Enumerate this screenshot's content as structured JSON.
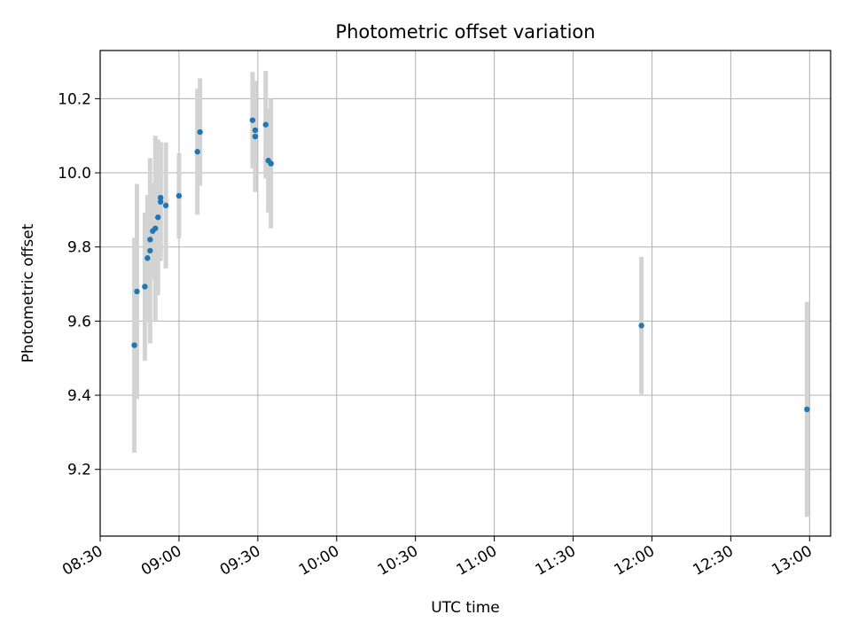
{
  "chart_data": {
    "type": "scatter",
    "title": "Photometric offset variation",
    "xlabel": "UTC time",
    "ylabel": "Photometric offset",
    "x_ticks": [
      "08:30",
      "09:00",
      "09:30",
      "10:00",
      "10:30",
      "11:00",
      "11:30",
      "12:00",
      "12:30",
      "13:00"
    ],
    "y_ticks": [
      "9.2",
      "9.4",
      "9.6",
      "9.8",
      "10.0",
      "10.2"
    ],
    "xlim": [
      "08:30",
      "13:08"
    ],
    "ylim": [
      9.02,
      10.33
    ],
    "grid": true,
    "colors": {
      "point": "#1f77b4",
      "errorbar": "#d3d3d3",
      "grid": "#b0b0b0"
    },
    "series": [
      {
        "points": [
          {
            "x": "08:43",
            "y": 9.535,
            "err": 0.29
          },
          {
            "x": "08:44",
            "y": 9.68,
            "err": 0.29
          },
          {
            "x": "08:47",
            "y": 9.693,
            "err": 0.2
          },
          {
            "x": "08:48",
            "y": 9.77,
            "err": 0.17
          },
          {
            "x": "08:49",
            "y": 9.82,
            "err": 0.12
          },
          {
            "x": "08:49",
            "y": 9.79,
            "err": 0.25
          },
          {
            "x": "08:50",
            "y": 9.843,
            "err": 0.13
          },
          {
            "x": "08:51",
            "y": 9.85,
            "err": 0.25
          },
          {
            "x": "08:52",
            "y": 9.88,
            "err": 0.21
          },
          {
            "x": "08:53",
            "y": 9.933,
            "err": 0.15
          },
          {
            "x": "08:53",
            "y": 9.922,
            "err": 0.16
          },
          {
            "x": "08:55",
            "y": 9.912,
            "err": 0.17
          },
          {
            "x": "09:00",
            "y": 9.938,
            "err": 0.115
          },
          {
            "x": "09:07",
            "y": 10.057,
            "err": 0.17
          },
          {
            "x": "09:08",
            "y": 10.11,
            "err": 0.145
          },
          {
            "x": "09:28",
            "y": 10.142,
            "err": 0.13
          },
          {
            "x": "09:29",
            "y": 10.115,
            "err": 0.08
          },
          {
            "x": "09:29",
            "y": 10.098,
            "err": 0.15
          },
          {
            "x": "09:33",
            "y": 10.13,
            "err": 0.145
          },
          {
            "x": "09:34",
            "y": 10.033,
            "err": 0.14
          },
          {
            "x": "09:35",
            "y": 10.025,
            "err": 0.175
          },
          {
            "x": "11:56",
            "y": 9.588,
            "err": 0.185
          },
          {
            "x": "12:59",
            "y": 9.362,
            "err": 0.29
          }
        ]
      }
    ]
  }
}
